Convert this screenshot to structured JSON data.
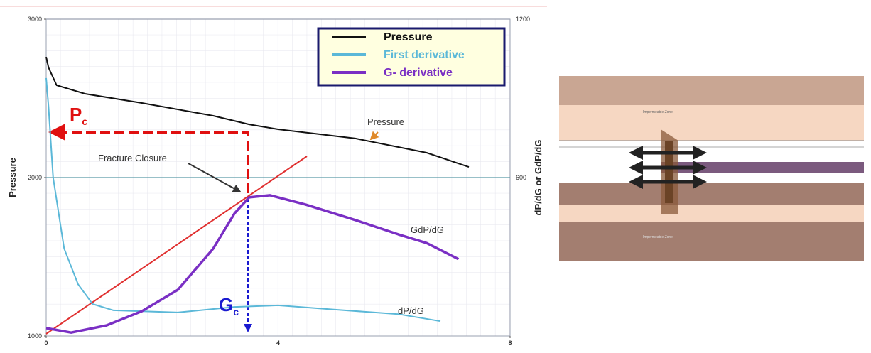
{
  "chart_data": {
    "type": "line",
    "xlim": [
      0,
      8
    ],
    "xticks": [
      0,
      4,
      8
    ],
    "ylim": [
      1000,
      3000
    ],
    "yticks": [
      1000,
      2000,
      3000
    ],
    "y2lim": [
      0,
      1200
    ],
    "y2ticks": [
      600,
      1200
    ],
    "ylabel": "Pressure",
    "y2label": "dP/dG or GdP/dG",
    "series": [
      {
        "name": "Pressure",
        "color": "#111111",
        "x": [
          0,
          0.04,
          0.18,
          0.67,
          1.65,
          2.88,
          3.5,
          4.0,
          5.33,
          6.56,
          7.29
        ],
        "values": [
          2762,
          2695,
          2583,
          2529,
          2471,
          2390,
          2336,
          2305,
          2247,
          2157,
          2067
        ]
      },
      {
        "name": "First derivative",
        "color": "#5bb8d8",
        "axis": "y2",
        "x": [
          0,
          0.04,
          0.12,
          0.31,
          0.55,
          0.8,
          1.16,
          2.27,
          3.25,
          4.0,
          4.96,
          6.07,
          6.8
        ],
        "values": [
          977,
          869,
          600,
          331,
          196,
          121,
          97,
          89,
          110,
          116,
          100,
          83,
          56
        ]
      },
      {
        "name": "G- derivative",
        "color": "#7a2fc4",
        "axis": "y2",
        "x": [
          0,
          0.43,
          1.04,
          1.65,
          2.27,
          2.88,
          3.25,
          3.5,
          3.86,
          4.47,
          5.33,
          6.07,
          6.56,
          7.11
        ],
        "values": [
          30,
          13,
          40,
          94,
          175,
          331,
          465,
          525,
          533,
          498,
          439,
          385,
          352,
          291
        ]
      }
    ],
    "annotations": {
      "pc": {
        "text": "P",
        "sub": "c"
      },
      "gc": {
        "text": "G",
        "sub": "c"
      },
      "closure": "Fracture Closure",
      "pressure": "Pressure",
      "gdpdg": "GdP/dG",
      "dpdg": "dP/dG"
    }
  },
  "diagram": {
    "labels": [
      "Impermeable Zone",
      "Impermeable Zone"
    ]
  }
}
